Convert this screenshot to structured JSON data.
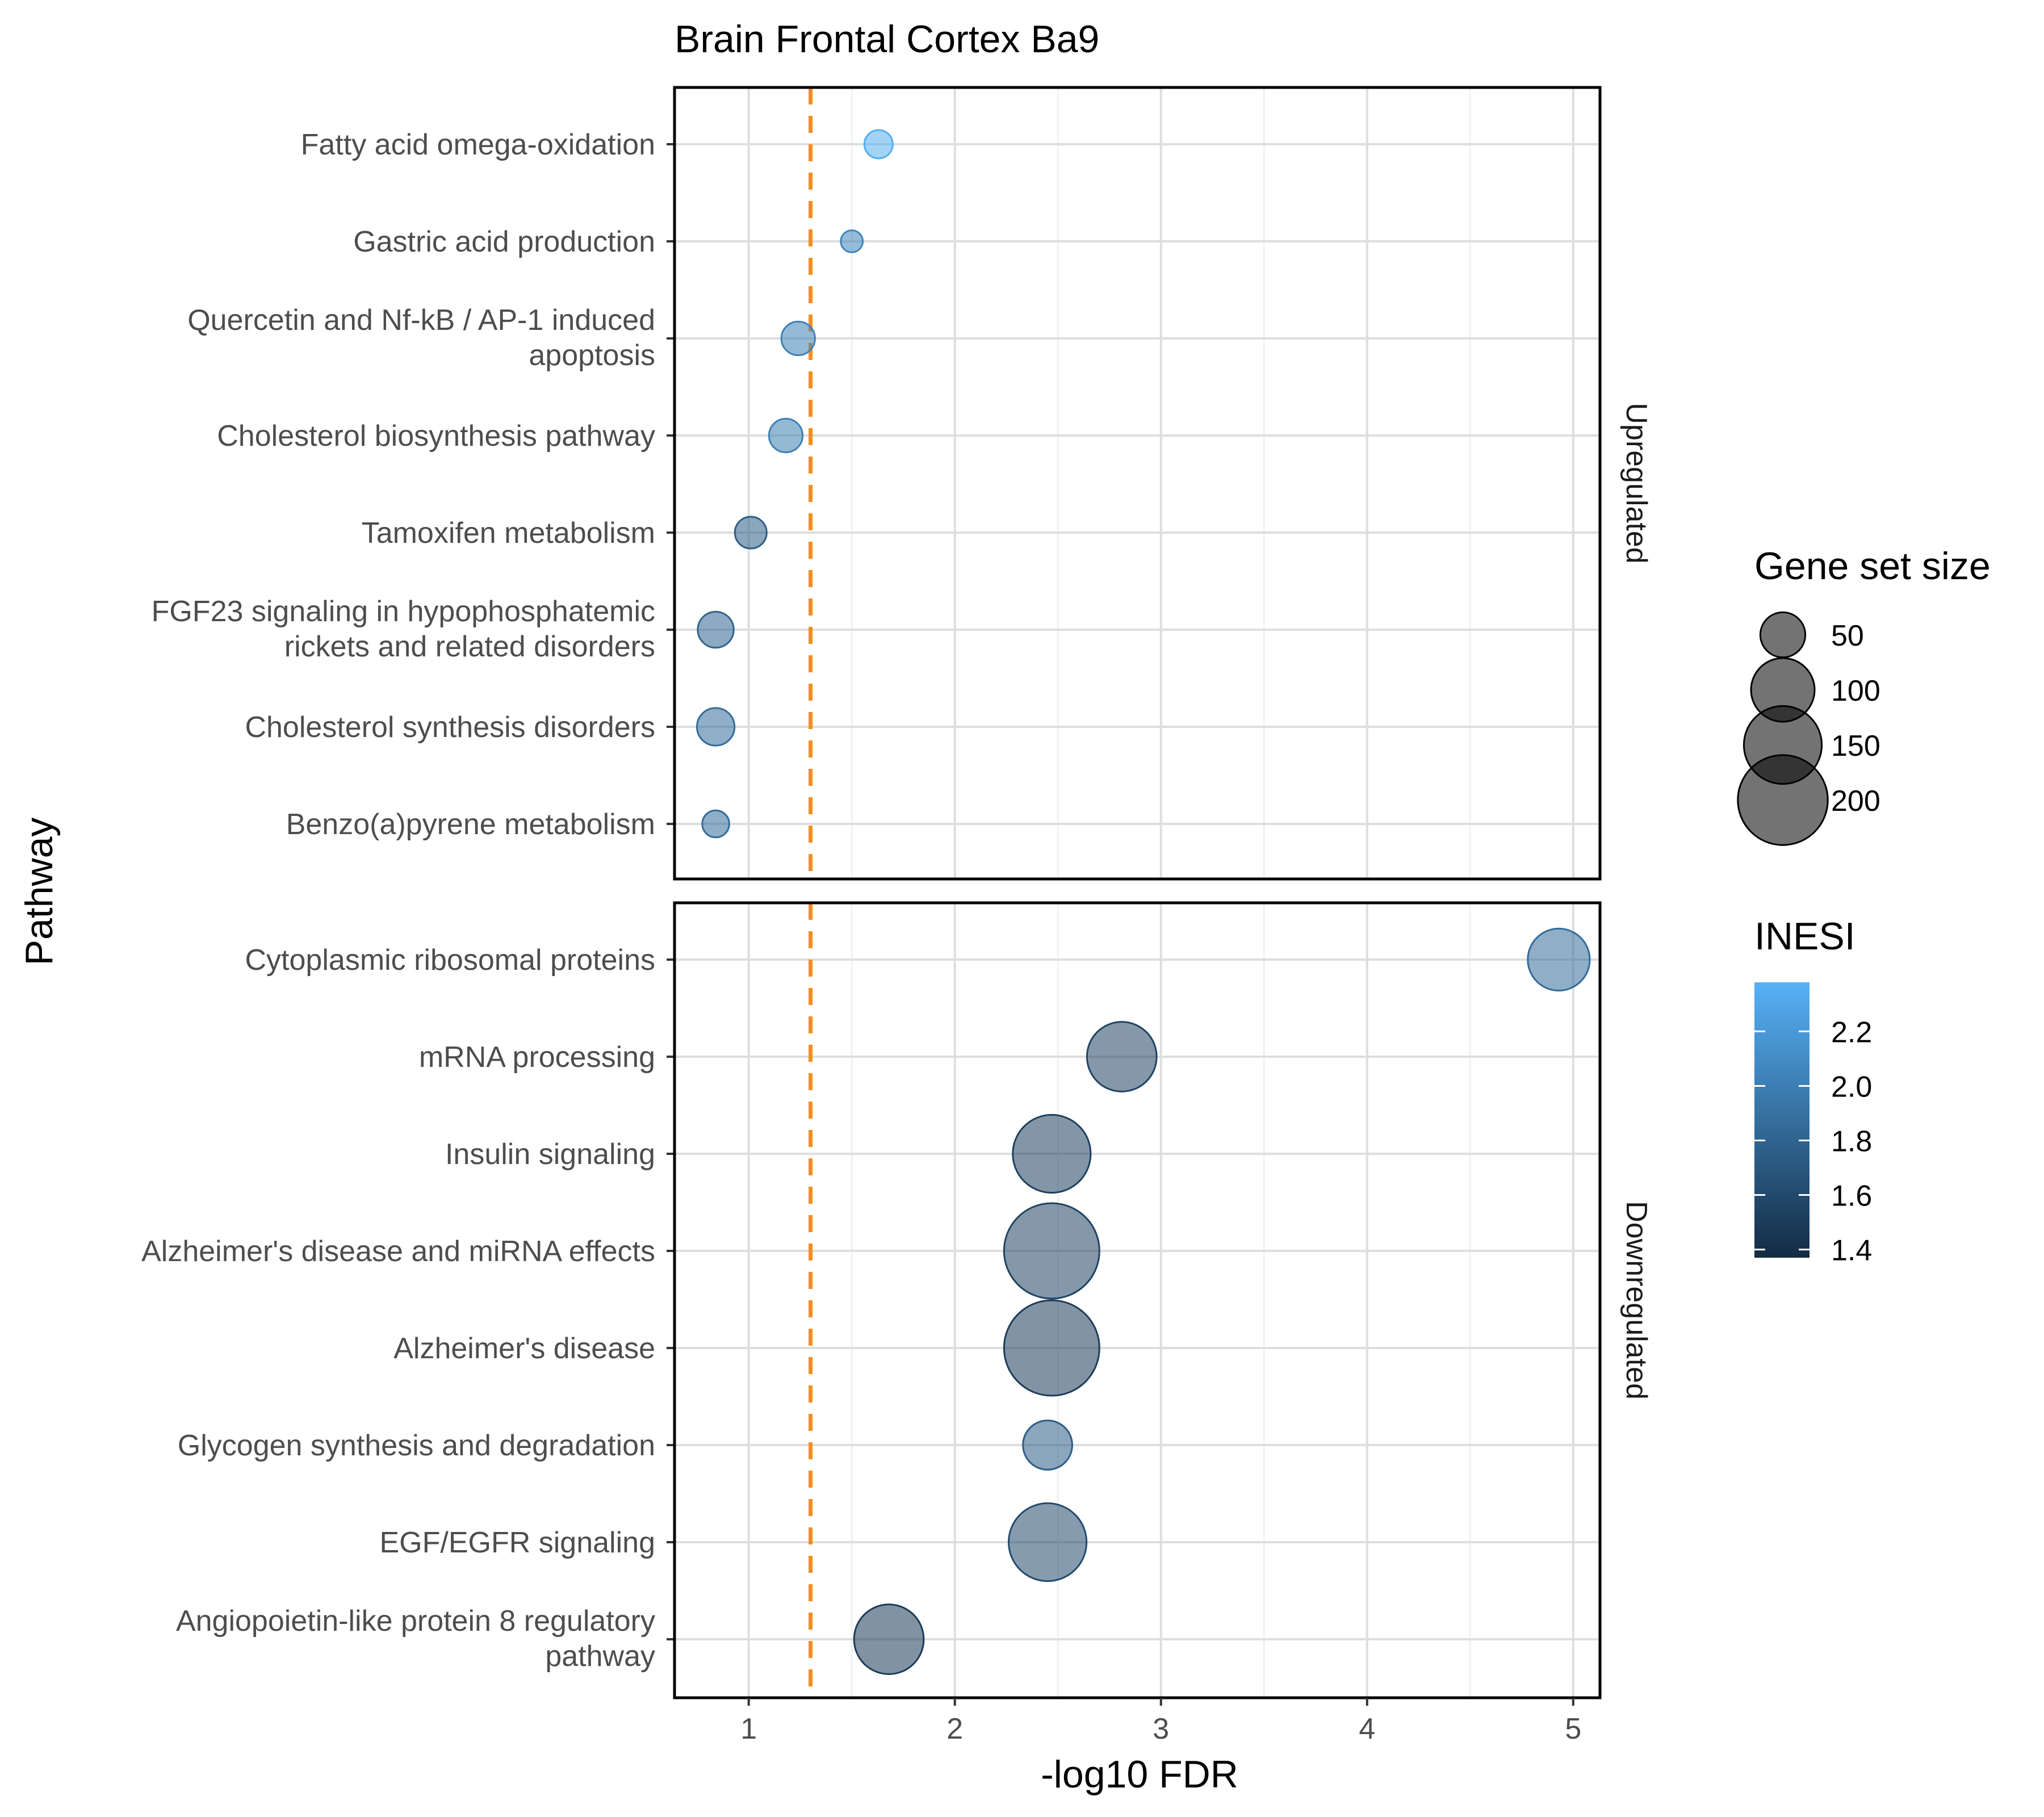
{
  "chart_data": {
    "type": "scatter",
    "title": "Brain Frontal Cortex Ba9",
    "xlabel": "-log10 FDR",
    "ylabel": "Pathway",
    "xlim": [
      0.64,
      5.13
    ],
    "xticks": [
      1,
      2,
      3,
      4,
      5
    ],
    "threshold": {
      "x": 1.3,
      "color": "#F28E1C",
      "style": "dashed"
    },
    "grid": true,
    "facets": [
      {
        "name": "Upregulated",
        "points": [
          {
            "pathway": "Fatty acid omega-oxidation",
            "x": 1.63,
            "size": 20,
            "nes": 2.35
          },
          {
            "pathway": "Gastric acid production",
            "x": 1.5,
            "size": 12,
            "nes": 2.05
          },
          {
            "pathway": "Quercetin and Nf-kB / AP-1 induced\napoptosis",
            "x": 1.24,
            "size": 28,
            "nes": 2.02
          },
          {
            "pathway": "Cholesterol biosynthesis pathway",
            "x": 1.18,
            "size": 28,
            "nes": 2.0
          },
          {
            "pathway": "Tamoxifen metabolism",
            "x": 1.01,
            "size": 25,
            "nes": 1.75
          },
          {
            "pathway": "FGF23 signaling in hypophosphatemic\nrickets and related disorders",
            "x": 0.84,
            "size": 32,
            "nes": 1.8
          },
          {
            "pathway": "Cholesterol synthesis disorders",
            "x": 0.84,
            "size": 35,
            "nes": 1.85
          },
          {
            "pathway": "Benzo(a)pyrene metabolism",
            "x": 0.84,
            "size": 18,
            "nes": 1.85
          }
        ]
      },
      {
        "name": "Downregulated",
        "points": [
          {
            "pathway": "Cytoplasmic ribosomal proteins",
            "x": 4.93,
            "size": 95,
            "nes": 1.85
          },
          {
            "pathway": "mRNA processing",
            "x": 2.81,
            "size": 120,
            "nes": 1.55
          },
          {
            "pathway": "Insulin signaling",
            "x": 2.47,
            "size": 150,
            "nes": 1.52
          },
          {
            "pathway": "Alzheimer's disease and miRNA effects",
            "x": 2.47,
            "size": 225,
            "nes": 1.55
          },
          {
            "pathway": "Alzheimer's disease",
            "x": 2.47,
            "size": 225,
            "nes": 1.5
          },
          {
            "pathway": "Glycogen synthesis and degradation",
            "x": 2.45,
            "size": 60,
            "nes": 1.75
          },
          {
            "pathway": "EGF/EGFR signaling",
            "x": 2.45,
            "size": 150,
            "nes": 1.6
          },
          {
            "pathway": "Angiopoietin-like protein 8 regulatory\npathway",
            "x": 1.68,
            "size": 120,
            "nes": 1.48
          }
        ]
      }
    ],
    "legend_size": {
      "title": "Gene set size",
      "values": [
        50,
        100,
        150,
        200
      ]
    },
    "legend_color": {
      "title": "INESI",
      "ticks": [
        2.2,
        2.0,
        1.8,
        1.6,
        1.4
      ],
      "range": [
        1.37,
        2.38
      ],
      "low_color": "#132B43",
      "high_color": "#56B1F7"
    },
    "point_alpha": 0.55
  }
}
